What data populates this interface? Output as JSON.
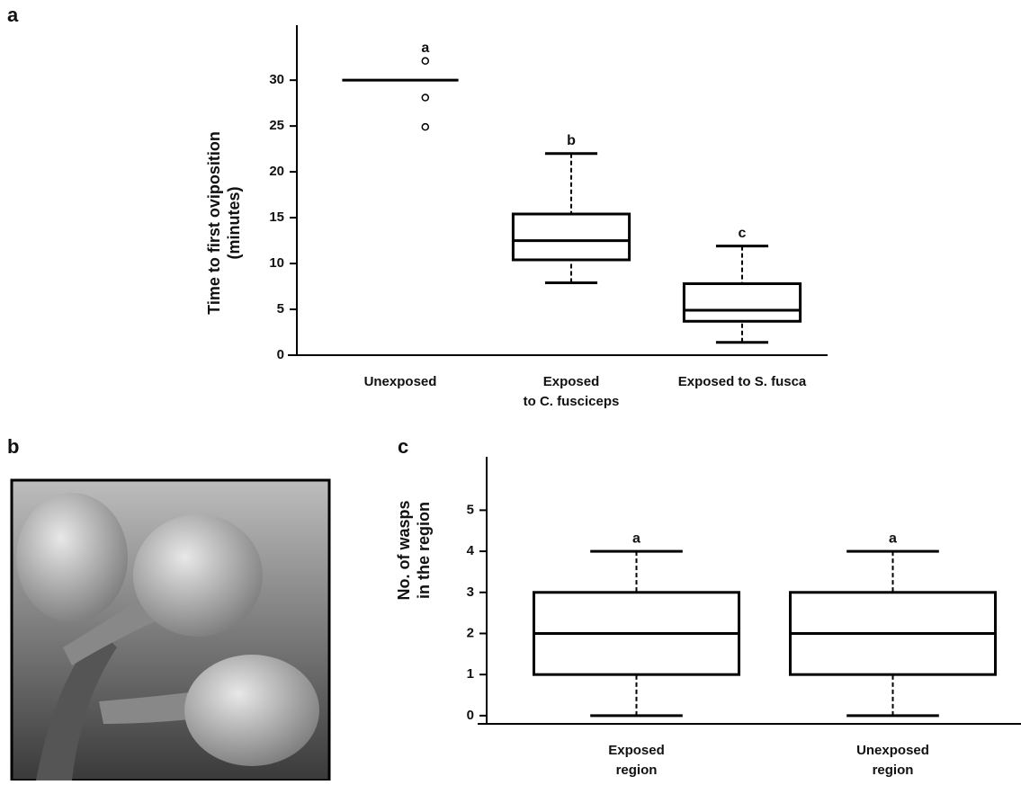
{
  "panels": [
    "a",
    "b",
    "c"
  ],
  "chart_data": [
    {
      "type": "box",
      "y_label": [
        "Time to first oviposition",
        "(minutes)"
      ],
      "categories": [
        [
          "Unexposed"
        ],
        [
          "Exposed",
          "to C. fusciceps"
        ],
        [
          "Exposed to S. fusca"
        ]
      ],
      "boxes": [
        {
          "low": 30,
          "q1": 30,
          "median": 30,
          "q3": 30,
          "high": 30,
          "outliers": [
            32.1,
            28.1,
            24.9
          ]
        },
        {
          "low": 7.9,
          "q1": 10.4,
          "median": 12.5,
          "q3": 15.4,
          "high": 22.0,
          "outliers": []
        },
        {
          "low": 1.4,
          "q1": 3.7,
          "median": 4.9,
          "q3": 7.8,
          "high": 11.9,
          "outliers": []
        }
      ],
      "letters": [
        "a",
        "b",
        "c"
      ],
      "ylim": [
        0,
        36
      ],
      "yticks": [
        0,
        5,
        10,
        15,
        20,
        25,
        30
      ],
      "grid": false
    },
    {
      "type": "box",
      "y_label": [
        "No. of wasps",
        "in the region"
      ],
      "categories": [
        [
          "Exposed",
          "region"
        ],
        [
          "Unexposed",
          "region"
        ]
      ],
      "boxes": [
        {
          "low": 0,
          "q1": 1,
          "median": 2,
          "q3": 3,
          "high": 4,
          "outliers": []
        },
        {
          "low": 0,
          "q1": 1,
          "median": 2,
          "q3": 3,
          "high": 4,
          "outliers": []
        }
      ],
      "letters": [
        "a",
        "a"
      ],
      "ylim": [
        -0.2,
        6.3
      ],
      "yticks": [
        0,
        1,
        2,
        3,
        4,
        5
      ],
      "grid": false
    }
  ]
}
